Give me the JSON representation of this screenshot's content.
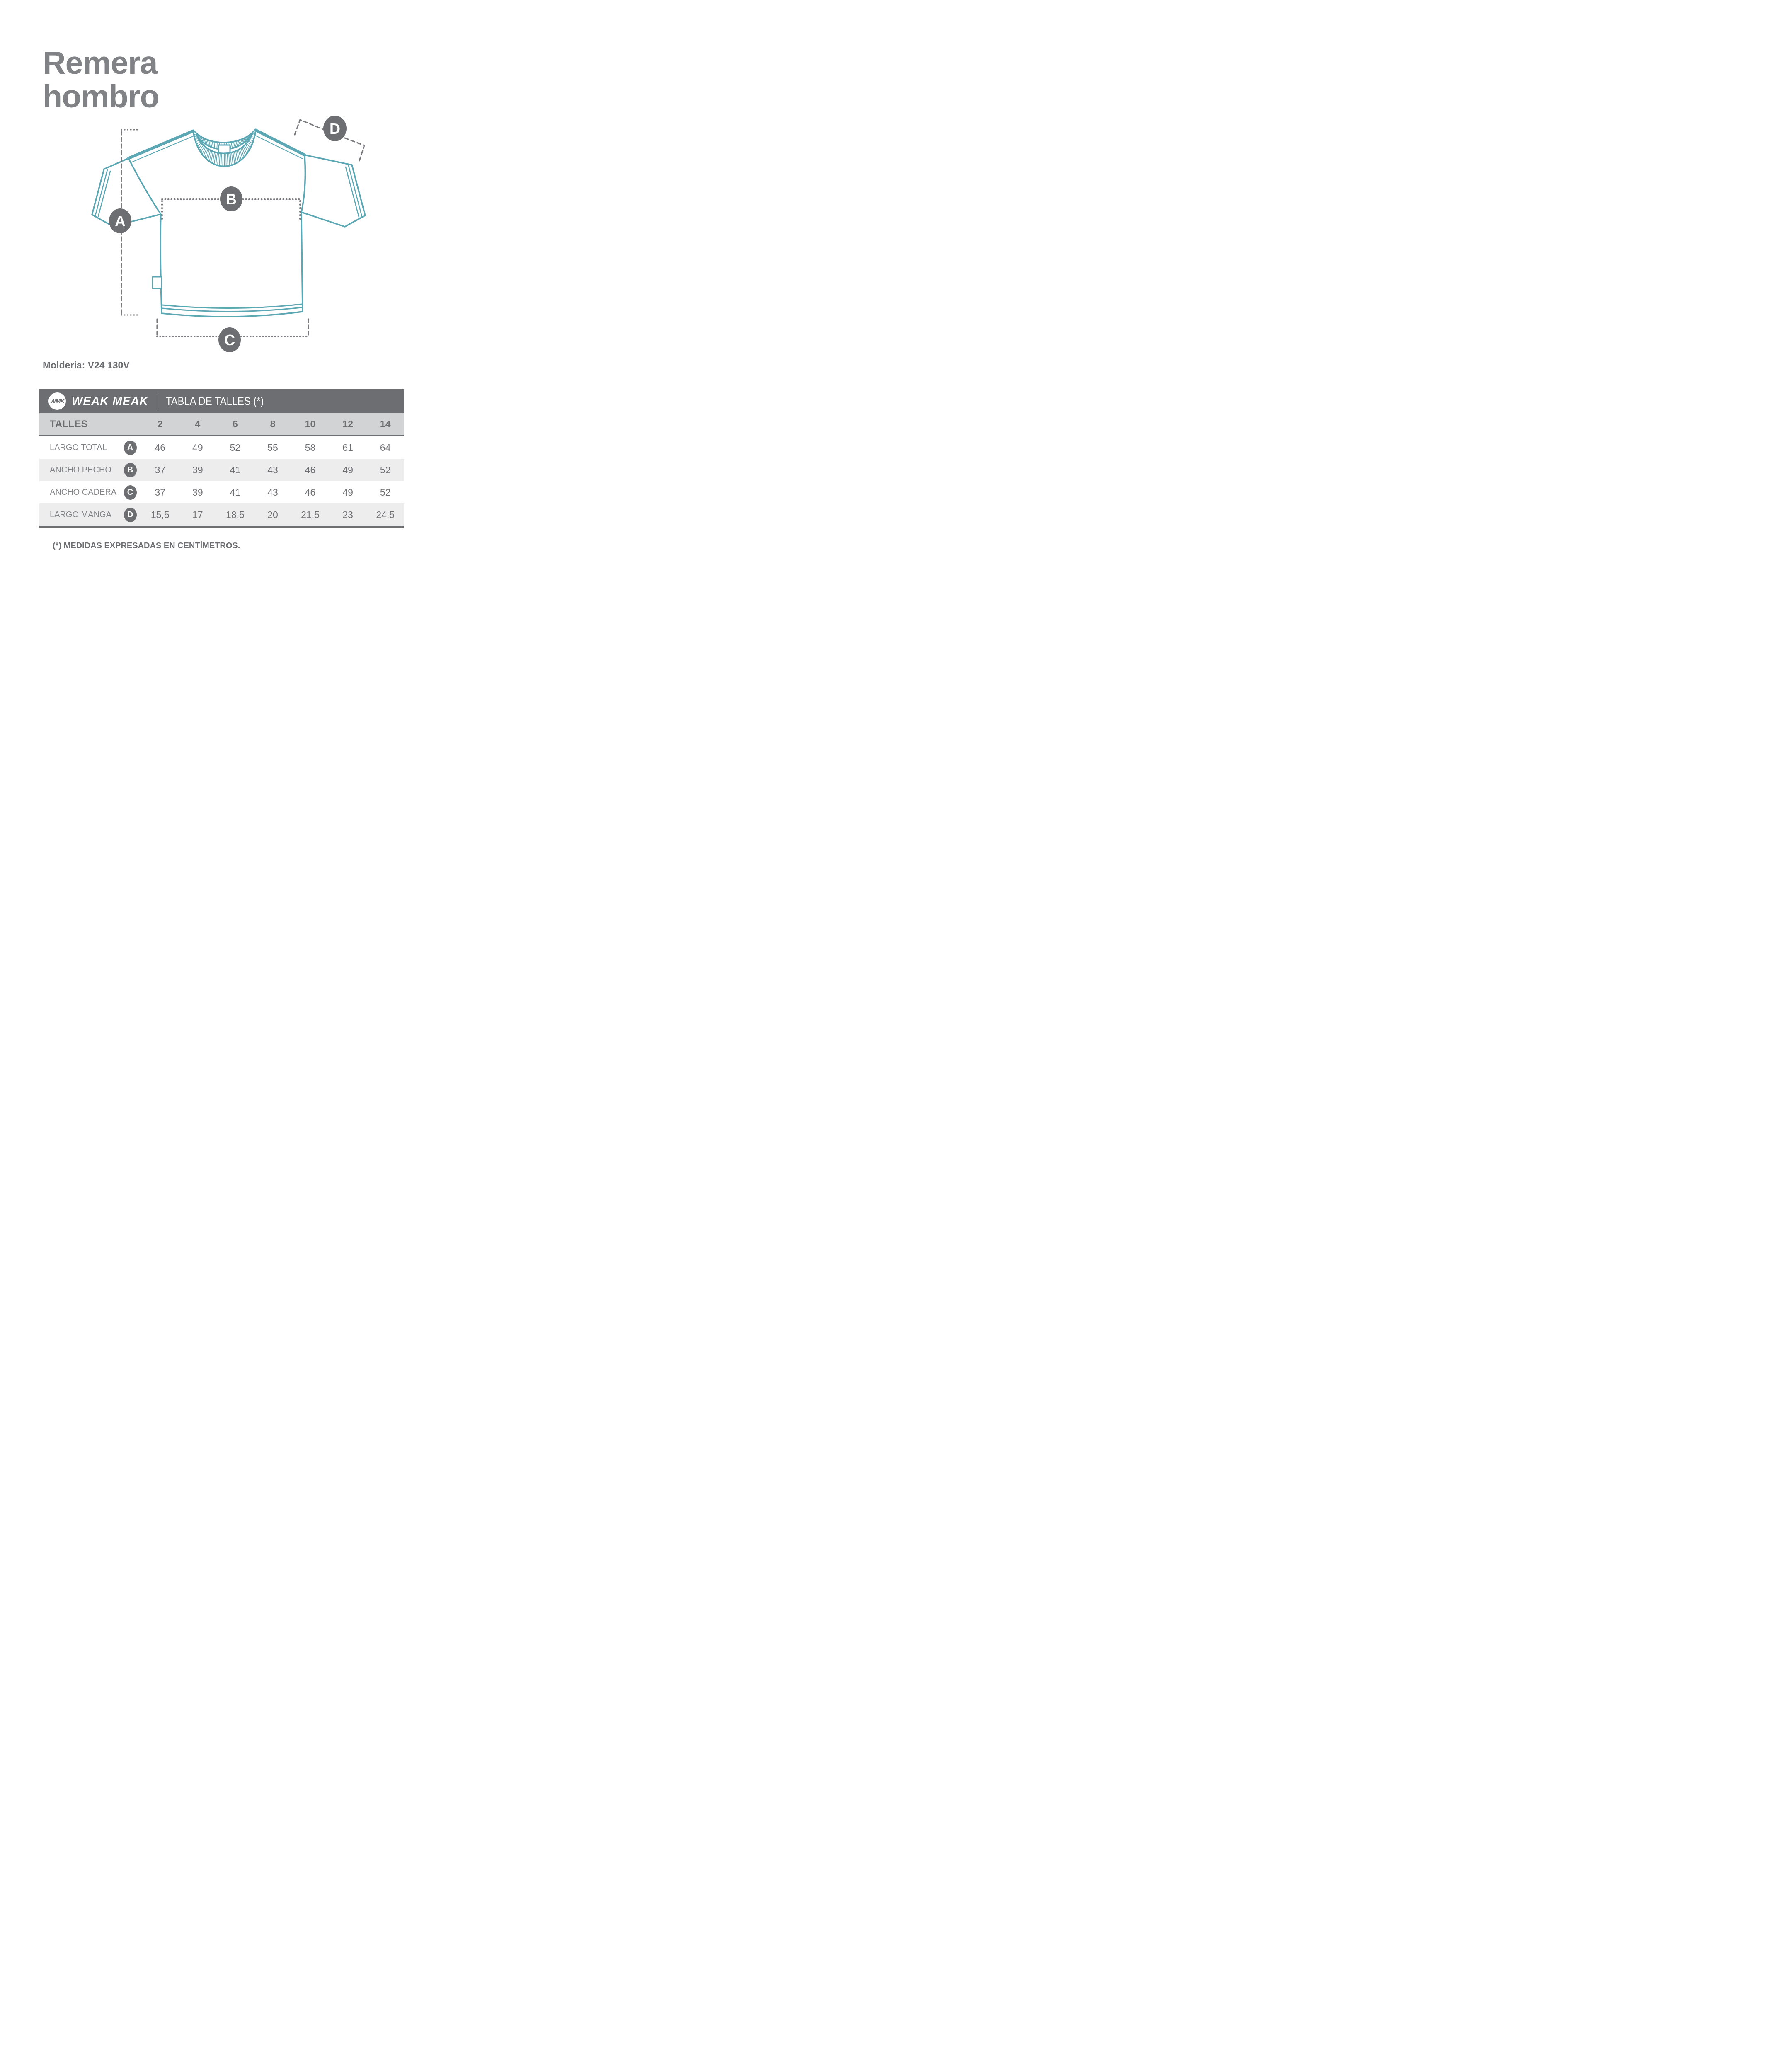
{
  "title": {
    "line1": "Remera",
    "line2": "hombro"
  },
  "molderia": "Molderia: V24 130V",
  "diagram": {
    "markers": [
      {
        "letter": "A",
        "meaning": "largo total"
      },
      {
        "letter": "B",
        "meaning": "ancho pecho"
      },
      {
        "letter": "C",
        "meaning": "ancho cadera"
      },
      {
        "letter": "D",
        "meaning": "largo manga"
      }
    ],
    "shirt_outline_color": "#5BA7B4",
    "marker_color": "#6D6E71",
    "measure_line_color": "#7B7C80"
  },
  "size_table": {
    "logo_monogram": "WMK",
    "brand": "WEAK MEAK",
    "header_title": "TABLA DE TALLES (*)",
    "col_header": "TALLES",
    "sizes": [
      "2",
      "4",
      "6",
      "8",
      "10",
      "12",
      "14"
    ],
    "rows": [
      {
        "label": "LARGO TOTAL",
        "badge": "A",
        "values": [
          "46",
          "49",
          "52",
          "55",
          "58",
          "61",
          "64"
        ]
      },
      {
        "label": "ANCHO PECHO",
        "badge": "B",
        "values": [
          "37",
          "39",
          "41",
          "43",
          "46",
          "49",
          "52"
        ]
      },
      {
        "label": "ANCHO CADERA",
        "badge": "C",
        "values": [
          "37",
          "39",
          "41",
          "43",
          "46",
          "49",
          "52"
        ]
      },
      {
        "label": "LARGO MANGA",
        "badge": "D",
        "values": [
          "15,5",
          "17",
          "18,5",
          "20",
          "21,5",
          "23",
          "24,5"
        ]
      }
    ],
    "footnote": "(*) MEDIDAS EXPRESADAS EN CENTÍMETROS.",
    "colors": {
      "header_bar": "#6D6E71",
      "sizes_row_bg": "#D1D3D4",
      "alt_row_bg": "#EDEDEE",
      "text_dark": "#6D6E71",
      "text_label": "#808285"
    }
  }
}
